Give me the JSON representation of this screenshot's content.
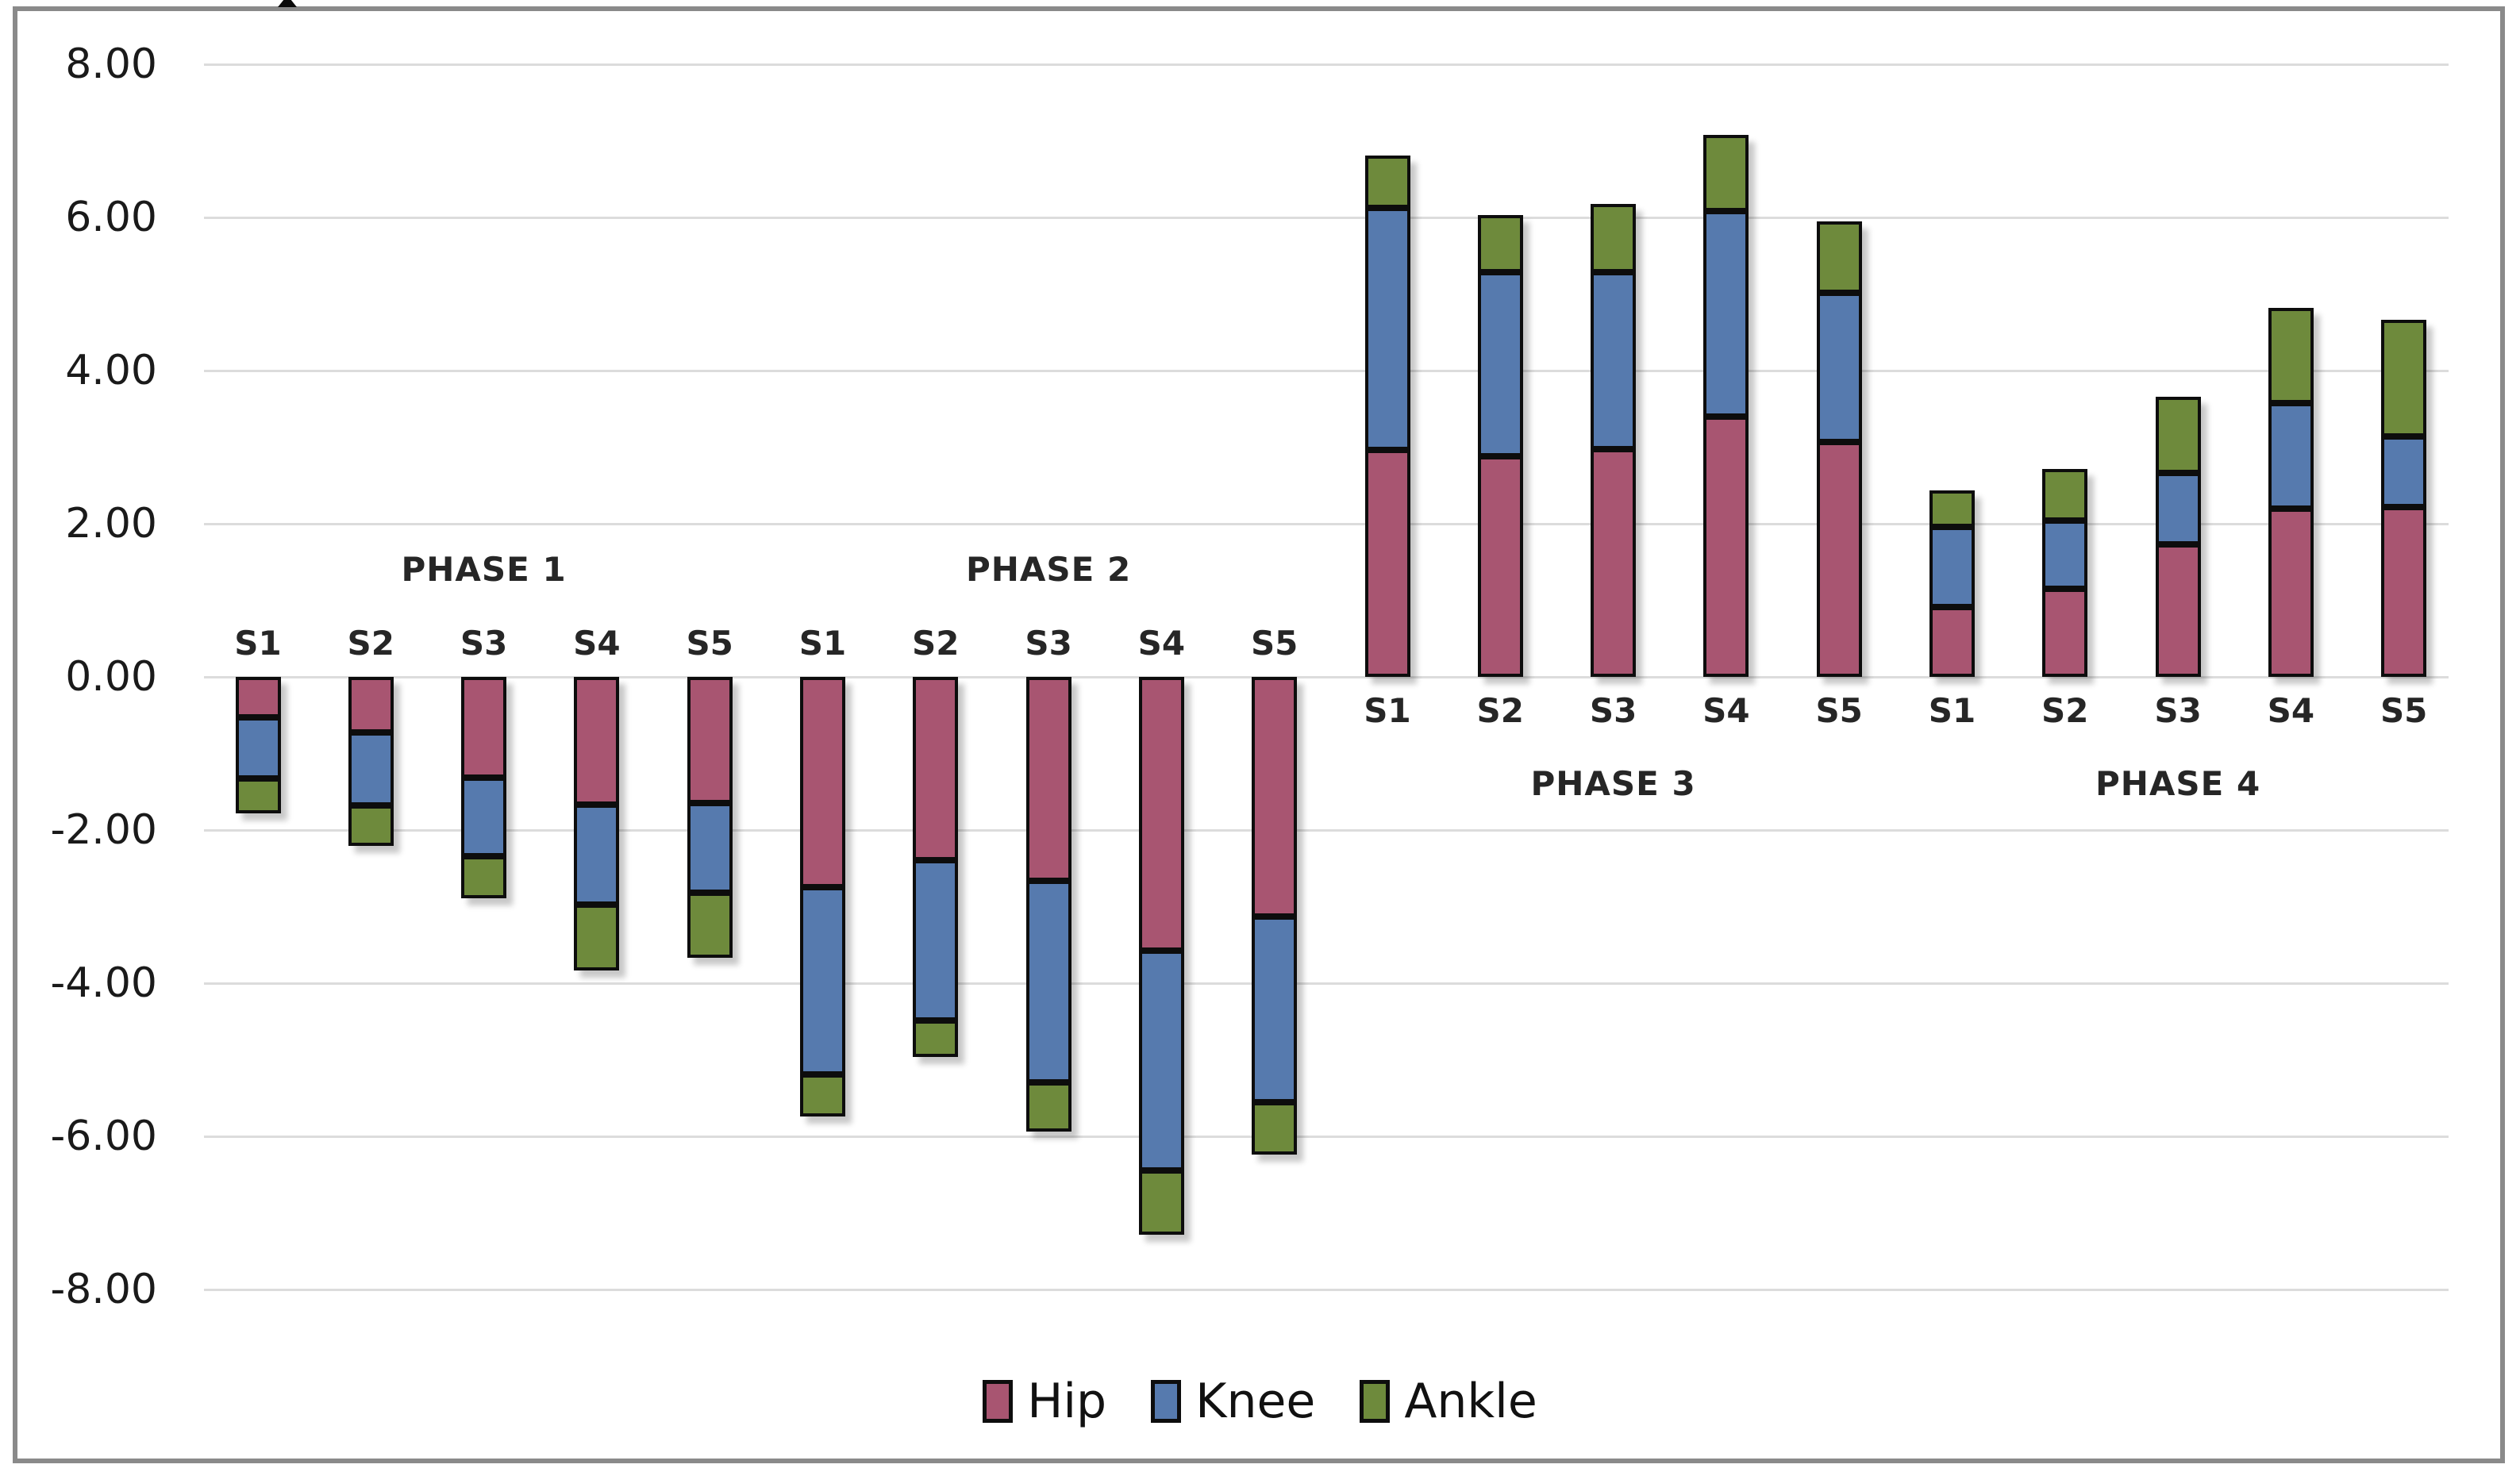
{
  "chart_data": {
    "type": "bar",
    "stacked": true,
    "orientation": "vertical",
    "title": "",
    "xlabel": "",
    "ylabel": "",
    "grid": true,
    "legend_position": "bottom-center",
    "note": "Phases 1-2 stack downward (negative values); phases 3-4 stack upward (positive values). Segment values below are magnitudes in joint order Hip (innermost, at zero line), Knee, Ankle (outermost).",
    "y_axis": {
      "min": -8,
      "max": 8,
      "tick_step": 2,
      "tick_values": [
        8,
        6,
        4,
        2,
        0,
        -2,
        -4,
        -6,
        -8
      ],
      "tick_labels": [
        "8.00",
        "6.00",
        "4.00",
        "2.00",
        "0.00",
        "-2.00",
        "-4.00",
        "-6.00",
        "-8.00"
      ]
    },
    "series_order": [
      "Hip",
      "Knee",
      "Ankle"
    ],
    "legend": [
      {
        "label": "Hip",
        "color": "#a85571"
      },
      {
        "label": "Knee",
        "color": "#567aae"
      },
      {
        "label": "Ankle",
        "color": "#6e8a3c"
      }
    ],
    "style": {
      "segment_border_color": "#0d0d0d",
      "gridline_color": "#dcdcdc",
      "frame_color": "#8a8a8a",
      "background": "#ffffff"
    },
    "phases": [
      {
        "label": "PHASE 1",
        "sign": -1,
        "subjects": [
          "S1",
          "S2",
          "S3",
          "S4",
          "S5"
        ],
        "hip": [
          0.53,
          0.73,
          1.32,
          1.67,
          1.65
        ],
        "knee": [
          0.8,
          0.95,
          1.02,
          1.3,
          1.17
        ],
        "ankle": [
          0.45,
          0.53,
          0.55,
          0.86,
          0.85
        ],
        "totals": [
          -1.78,
          -2.21,
          -2.89,
          -3.83,
          -3.67
        ]
      },
      {
        "label": "PHASE 2",
        "sign": -1,
        "subjects": [
          "S1",
          "S2",
          "S3",
          "S4",
          "S5"
        ],
        "hip": [
          2.75,
          2.39,
          2.66,
          3.58,
          3.13
        ],
        "knee": [
          2.44,
          2.1,
          2.64,
          2.87,
          2.42
        ],
        "ankle": [
          0.55,
          0.47,
          0.64,
          0.83,
          0.69
        ],
        "totals": [
          -5.74,
          -4.96,
          -5.94,
          -7.28,
          -6.24
        ]
      },
      {
        "label": "PHASE 3",
        "sign": 1,
        "subjects": [
          "S1",
          "S2",
          "S3",
          "S4",
          "S5"
        ],
        "hip": [
          2.96,
          2.88,
          2.97,
          3.4,
          3.07
        ],
        "knee": [
          3.16,
          2.41,
          2.31,
          2.68,
          1.95
        ],
        "ankle": [
          0.69,
          0.74,
          0.9,
          1.0,
          0.93
        ],
        "totals": [
          6.81,
          6.03,
          6.18,
          7.08,
          5.95
        ]
      },
      {
        "label": "PHASE 4",
        "sign": 1,
        "subjects": [
          "S1",
          "S2",
          "S3",
          "S4",
          "S5"
        ],
        "hip": [
          0.91,
          1.15,
          1.73,
          2.2,
          2.22
        ],
        "knee": [
          1.05,
          0.89,
          0.93,
          1.37,
          0.92
        ],
        "ankle": [
          0.48,
          0.67,
          1.0,
          1.25,
          1.52
        ],
        "totals": [
          2.44,
          2.71,
          3.66,
          4.82,
          4.66
        ]
      }
    ]
  }
}
